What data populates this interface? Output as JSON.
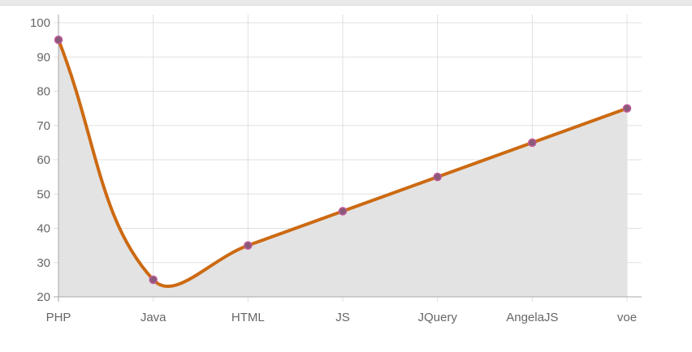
{
  "chart_data": {
    "type": "line",
    "categories": [
      "PHP",
      "Java",
      "HTML",
      "JS",
      "JQuery",
      "AngelaJS",
      "voe"
    ],
    "series": [
      {
        "values": [
          95,
          25,
          35,
          45,
          55,
          65,
          75
        ]
      }
    ],
    "title": "",
    "xlabel": "",
    "ylabel": "",
    "ylim": [
      20,
      100
    ],
    "yticks": [
      20,
      30,
      40,
      50,
      60,
      70,
      80,
      90,
      100
    ],
    "grid": true,
    "smooth": true,
    "filled": true,
    "colors": {
      "line": "#cc6a12",
      "fill": "#e3e3e3",
      "point": "#8a5a78",
      "point_stroke": "#c05a9a",
      "grid": "#e0e0e0",
      "axis": "#a9a9a9"
    }
  }
}
